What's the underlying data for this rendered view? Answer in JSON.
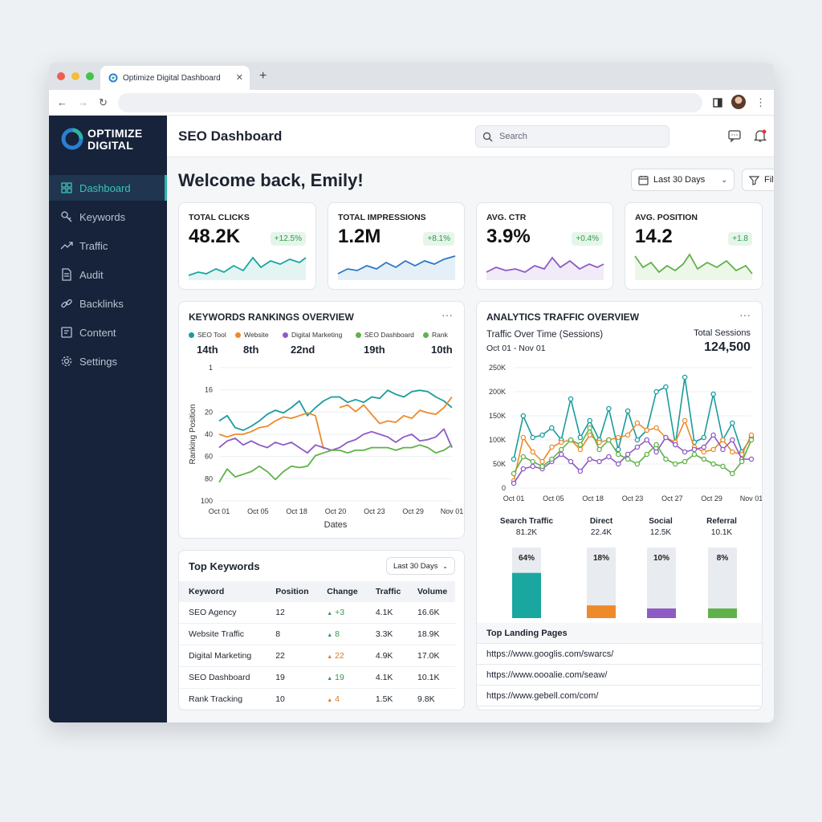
{
  "browser": {
    "tab_title": "Optimize Digital Dashboard"
  },
  "brand": {
    "line1": "OPTIMIZE",
    "line2": "DIGITAL"
  },
  "sidebar": {
    "items": [
      {
        "label": "Dashboard",
        "icon": "grid-icon"
      },
      {
        "label": "Keywords",
        "icon": "key-icon"
      },
      {
        "label": "Traffic",
        "icon": "trend-icon"
      },
      {
        "label": "Audit",
        "icon": "document-icon"
      },
      {
        "label": "Backlinks",
        "icon": "link-icon"
      },
      {
        "label": "Content",
        "icon": "content-icon"
      },
      {
        "label": "Settings",
        "icon": "gear-icon"
      }
    ]
  },
  "header": {
    "title": "SEO Dashboard",
    "search_placeholder": "Search"
  },
  "welcome": "Welcome back, Emily!",
  "controls": {
    "date_range": "Last 30 Days",
    "filters": "Filters"
  },
  "kpis": [
    {
      "label": "TOTAL CLICKS",
      "value": "48.2K",
      "change": "+12.5%",
      "color": "#1aa7a0"
    },
    {
      "label": "TOTAL IMPRESSIONS",
      "value": "1.2M",
      "change": "+8.1%",
      "color": "#2a78c4"
    },
    {
      "label": "AVG. CTR",
      "value": "3.9%",
      "change": "+0.4%",
      "color": "#8e5bc4"
    },
    {
      "label": "AVG. POSITION",
      "value": "14.2",
      "change": "+1.8",
      "color": "#5fb24a"
    }
  ],
  "rankings": {
    "title": "KEYWORDS RANKINGS OVERVIEW",
    "legend": [
      {
        "name": "SEO Tool",
        "value": "14th",
        "color": "#1a9c9c"
      },
      {
        "name": "Website",
        "value": "8th",
        "color": "#ee8a2a"
      },
      {
        "name": "Digital Marketing",
        "value": "22nd",
        "color": "#8e5bc4"
      },
      {
        "name": "SEO Dashboard",
        "value": "19th",
        "color": "#5fb24a"
      },
      {
        "name": "Rank",
        "value": "10th",
        "color": "#5fb24a"
      }
    ]
  },
  "traffic": {
    "title": "ANALYTICS TRAFFIC OVERVIEW",
    "subtitle": "Traffic Over Time (Sessions)",
    "range": "Oct 01 - Nov 01",
    "total_label": "Total Sessions",
    "total_value": "124,500",
    "channels": [
      {
        "name": "Search Traffic",
        "value": "81.2K",
        "pct": "64%",
        "fill": 0.64,
        "color": "#1aa7a0"
      },
      {
        "name": "Direct",
        "value": "22.4K",
        "pct": "18%",
        "fill": 0.18,
        "color": "#ee8a2a"
      },
      {
        "name": "Social",
        "value": "12.5K",
        "pct": "10%",
        "fill": 0.1,
        "color": "#8e5bc4"
      },
      {
        "name": "Referral",
        "value": "10.1K",
        "pct": "8%",
        "fill": 0.08,
        "color": "#5fb24a"
      }
    ],
    "landing_title": "Top Landing Pages",
    "landing_pages": [
      "https://www.googlis.com/swarcs/",
      "https://www.oooalie.com/seaw/",
      "https://www.gebell.com/com/"
    ]
  },
  "top_keywords": {
    "title": "Top Keywords",
    "range": "Last 30 Days",
    "columns": [
      "Keyword",
      "Position",
      "Change",
      "Traffic",
      "Volume"
    ],
    "rows": [
      [
        "SEO Agency",
        "12",
        "+3",
        "4.1K",
        "16.6K"
      ],
      [
        "Website Traffic",
        "8",
        "8",
        "3.3K",
        "18.9K"
      ],
      [
        "Digital Marketing",
        "22",
        "22",
        "4.9K",
        "17.0K"
      ],
      [
        "SEO Dashboard",
        "19",
        "19",
        "4.1K",
        "10.1K"
      ],
      [
        "Rank Tracking",
        "10",
        "4",
        "1.5K",
        "9.8K"
      ]
    ]
  },
  "chart_data": [
    {
      "type": "line",
      "title": "KEYWORDS RANKINGS OVERVIEW",
      "xlabel": "Dates",
      "ylabel": "Ranking Position",
      "x_ticks": [
        "Oct 01",
        "Oct 05",
        "Oct 18",
        "Oct 20",
        "Oct 23",
        "Oct 29",
        "Nov 01"
      ],
      "y_ticks": [
        "1",
        "16",
        "20",
        "40",
        "60",
        "80",
        "100"
      ],
      "series": [
        {
          "name": "SEO Tool",
          "color": "#1a9c9c",
          "values": [
            40,
            36,
            45,
            47,
            44,
            40,
            35,
            32,
            34,
            30,
            25,
            36,
            30,
            25,
            22,
            22,
            26,
            24,
            26,
            22,
            23,
            17,
            20,
            22,
            18,
            17,
            18,
            22,
            25,
            30
          ]
        },
        {
          "name": "Website",
          "color": "#ee8a2a",
          "values": [
            50,
            52,
            50,
            50,
            48,
            45,
            44,
            40,
            37,
            38,
            36,
            34,
            36,
            61,
            null,
            30,
            28,
            33,
            28,
            35,
            42,
            40,
            41,
            36,
            38,
            32,
            34,
            35,
            30,
            22
          ]
        },
        {
          "name": "Digital Marketing",
          "color": "#8e5bc4",
          "values": [
            60,
            55,
            53,
            58,
            55,
            58,
            60,
            56,
            58,
            56,
            60,
            64,
            58,
            60,
            62,
            60,
            56,
            54,
            50,
            48,
            50,
            52,
            56,
            52,
            50,
            55,
            54,
            52,
            46,
            60
          ]
        },
        {
          "name": "SEO Dashboard",
          "color": "#5fb24a",
          "values": [
            86,
            76,
            82,
            80,
            78,
            74,
            78,
            84,
            78,
            74,
            75,
            74,
            66,
            64,
            62,
            62,
            64,
            62,
            62,
            60,
            60,
            60,
            62,
            60,
            60,
            58,
            60,
            64,
            62,
            58
          ]
        }
      ]
    },
    {
      "type": "line",
      "title": "Traffic Over Time (Sessions)",
      "x_ticks": [
        "Oct 01",
        "Oct 05",
        "Oct 18",
        "Oct 23",
        "Oct 27",
        "Oct 29",
        "Nov 01"
      ],
      "y_ticks": [
        "0",
        "50K",
        "100K",
        "150K",
        "200K",
        "250K"
      ],
      "ylim": [
        0,
        250000
      ],
      "series": [
        {
          "name": "Search Traffic",
          "color": "#1a9c9c",
          "values": [
            60000,
            150000,
            105000,
            110000,
            125000,
            100000,
            185000,
            105000,
            140000,
            100000,
            165000,
            80000,
            160000,
            100000,
            120000,
            200000,
            210000,
            90000,
            230000,
            95000,
            105000,
            195000,
            100000,
            135000,
            75000,
            105000
          ]
        },
        {
          "name": "Direct",
          "color": "#ee8a2a",
          "values": [
            15000,
            105000,
            75000,
            55000,
            85000,
            95000,
            100000,
            80000,
            110000,
            95000,
            100000,
            105000,
            110000,
            135000,
            120000,
            125000,
            105000,
            95000,
            140000,
            85000,
            75000,
            80000,
            100000,
            75000,
            70000,
            110000
          ]
        },
        {
          "name": "Social",
          "color": "#8e5bc4",
          "values": [
            10000,
            40000,
            45000,
            40000,
            55000,
            70000,
            55000,
            35000,
            60000,
            55000,
            65000,
            50000,
            70000,
            85000,
            100000,
            75000,
            105000,
            90000,
            75000,
            80000,
            85000,
            110000,
            80000,
            100000,
            60000,
            60000
          ]
        },
        {
          "name": "Referral",
          "color": "#5fb24a",
          "values": [
            30000,
            65000,
            55000,
            45000,
            60000,
            80000,
            100000,
            90000,
            125000,
            80000,
            100000,
            70000,
            60000,
            50000,
            70000,
            90000,
            60000,
            50000,
            55000,
            70000,
            60000,
            50000,
            45000,
            30000,
            55000,
            100000
          ]
        }
      ]
    },
    {
      "type": "bar",
      "categories": [
        "Search Traffic",
        "Direct",
        "Social",
        "Referral"
      ],
      "values": [
        64,
        18,
        10,
        8
      ]
    }
  ]
}
